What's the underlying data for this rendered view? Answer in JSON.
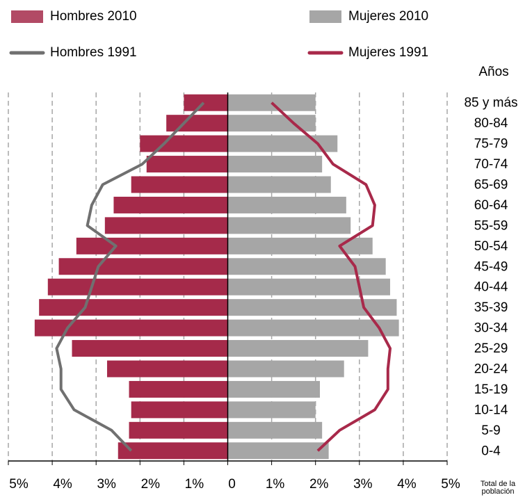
{
  "chart_data": {
    "type": "pyramid",
    "categories": [
      "85 y más",
      "80-84",
      "75-79",
      "70-74",
      "65-69",
      "60-64",
      "55-59",
      "50-54",
      "45-49",
      "40-44",
      "35-39",
      "30-34",
      "25-29",
      "20-24",
      "15-19",
      "10-14",
      "5-9",
      "0-4"
    ],
    "categories_title": "Años",
    "x_label": "Total de la población",
    "series": [
      {
        "name": "Hombres 2010",
        "kind": "bar",
        "color": "#a52a4a",
        "values": [
          -1.0,
          -1.4,
          -2.0,
          -1.85,
          -2.2,
          -2.6,
          -2.8,
          -3.45,
          -3.85,
          -4.1,
          -4.3,
          -4.4,
          -3.55,
          -2.75,
          -2.25,
          -2.2,
          -2.25,
          -2.5
        ]
      },
      {
        "name": "Mujeres 2010",
        "kind": "bar",
        "color": "#a6a6a6",
        "values": [
          2.0,
          2.0,
          2.5,
          2.15,
          2.35,
          2.7,
          2.8,
          3.3,
          3.6,
          3.7,
          3.85,
          3.9,
          3.2,
          2.65,
          2.1,
          2.0,
          2.15,
          2.3
        ]
      },
      {
        "name": "Hombres 1991",
        "kind": "line",
        "color": "#707070",
        "values": [
          -0.55,
          -1.0,
          -1.45,
          -1.95,
          -2.85,
          -3.1,
          -3.2,
          -2.55,
          -2.95,
          -3.1,
          -3.25,
          -3.65,
          -3.9,
          -3.8,
          -3.8,
          -3.5,
          -2.65,
          -2.2
        ]
      },
      {
        "name": "Mujeres 1991",
        "kind": "line",
        "color": "#a8294a",
        "values": [
          1.0,
          1.5,
          2.05,
          2.4,
          3.15,
          3.35,
          3.3,
          2.55,
          2.9,
          3.0,
          3.1,
          3.45,
          3.7,
          3.65,
          3.65,
          3.35,
          2.55,
          2.05
        ]
      }
    ],
    "xlim": [
      -5,
      5
    ],
    "xticks": [
      {
        "value": -5,
        "label": "5%"
      },
      {
        "value": -4,
        "label": "4%"
      },
      {
        "value": -3,
        "label": "3%"
      },
      {
        "value": -2,
        "label": "2%"
      },
      {
        "value": -1,
        "label": "1%"
      },
      0,
      {
        "value": 1,
        "label": "1%"
      },
      {
        "value": 2,
        "label": "2%"
      },
      {
        "value": 3,
        "label": "3%"
      },
      {
        "value": 4,
        "label": "4%"
      },
      {
        "value": 5,
        "label": "5%"
      }
    ],
    "grid": true
  }
}
